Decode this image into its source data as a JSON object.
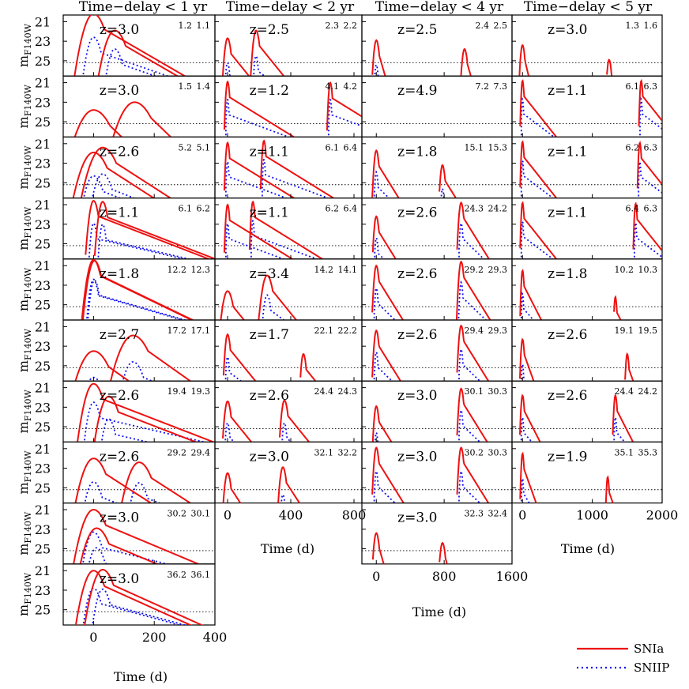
{
  "chart_data": {
    "type": "line",
    "column_titles": [
      "Time−delay < 1 yr",
      "Time−delay < 2 yr",
      "Time−delay < 4 yr",
      "Time−delay < 5 yr"
    ],
    "ylabel": "m",
    "ylabel_sub": "F140W",
    "xlabel": "Time (d)",
    "ylim": [
      26.4,
      20.4
    ],
    "yticks": [
      21,
      23,
      25
    ],
    "detection_limit": 25.2,
    "legend": [
      "SNIa",
      "SNIIP"
    ],
    "legend_position": "bottom-right",
    "series_styles": {
      "SNIa": {
        "color": "#ee1111",
        "dash": "solid"
      },
      "SNIIP": {
        "color": "#1111ee",
        "dash": "dotted"
      }
    },
    "columns": [
      {
        "xlim": [
          -100,
          400
        ],
        "xticks": [
          0,
          200,
          400
        ],
        "panels": [
          {
            "z": "z=3.0",
            "m1": "1.2",
            "m2": "1.1",
            "delay": 70,
            "peaks": [
              20.2,
              21.9
            ],
            "ii_peaks": [
              22.6,
              23.8
            ],
            "rise": 40,
            "decay": 0.018
          },
          {
            "z": "z=3.0",
            "m1": "1.5",
            "m2": "1.4",
            "delay": 135,
            "peaks": [
              23.8,
              23.0
            ],
            "ii_peaks": [
              26.6,
              26.6
            ],
            "rise": 60,
            "decay": 0.03
          },
          {
            "z": "z=2.6",
            "m1": "5.2",
            "m2": "5.1",
            "delay": 30,
            "peaks": [
              21.9,
              21.4
            ],
            "ii_peaks": [
              24.3,
              24.1
            ],
            "rise": 50,
            "decay": 0.02
          },
          {
            "z": "z=1.1",
            "m1": "6.1",
            "m2": "6.2",
            "delay": 30,
            "peaks": [
              20.6,
              20.7
            ],
            "ii_peaks": [
              22.9,
              23.0
            ],
            "rise": 18,
            "decay": 0.012
          },
          {
            "z": "z=1.8",
            "m1": "12.2",
            "m2": "12.3",
            "delay": 3,
            "peaks": [
              20.4,
              20.5
            ],
            "ii_peaks": [
              22.4,
              22.5
            ],
            "rise": 25,
            "decay": 0.015
          },
          {
            "z": "z=2.7",
            "m1": "17.2",
            "m2": "17.1",
            "delay": 130,
            "peaks": [
              23.5,
              21.9
            ],
            "ii_peaks": [
              26.2,
              24.6
            ],
            "rise": 55,
            "decay": 0.022
          },
          {
            "z": "z=2.6",
            "m1": "19.4",
            "m2": "19.3",
            "delay": 50,
            "peaks": [
              20.6,
              21.9
            ],
            "ii_peaks": [
              22.5,
              24.2
            ],
            "rise": 35,
            "decay": 0.012
          },
          {
            "z": "z=2.6",
            "m1": "29.2",
            "m2": "29.4",
            "delay": 150,
            "peaks": [
              22.0,
              22.4
            ],
            "ii_peaks": [
              24.4,
              24.5
            ],
            "rise": 45,
            "decay": 0.02
          },
          {
            "z": "z=3.0",
            "m1": "30.2",
            "m2": "30.1",
            "delay": 10,
            "peaks": [
              21.0,
              22.9
            ],
            "ii_peaks": [
              23.3,
              24.9
            ],
            "rise": 45,
            "decay": 0.013
          },
          {
            "z": "z=3.0",
            "m1": "36.2",
            "m2": "36.1",
            "delay": 30,
            "peaks": [
              21.0,
              20.9
            ],
            "ii_peaks": [
              22.8,
              22.9
            ],
            "rise": 40,
            "decay": 0.014
          }
        ]
      },
      {
        "xlim": [
          -80,
          850
        ],
        "xticks": [
          0,
          400,
          800
        ],
        "panels": [
          {
            "z": "z=2.5",
            "m1": "2.3",
            "m2": "2.2",
            "delay": 180,
            "peaks": [
              22.7,
              21.9
            ],
            "ii_peaks": [
              25.2,
              24.5
            ],
            "rise": 25,
            "decay": 0.02
          },
          {
            "z": "z=1.2",
            "m1": "4.1",
            "m2": "4.2",
            "delay": 650,
            "peaks": [
              20.9,
              21.0
            ],
            "ii_peaks": [
              22.7,
              22.7
            ],
            "rise": 15,
            "decay": 0.01
          },
          {
            "z": "z=1.1",
            "m1": "6.1",
            "m2": "6.4",
            "delay": 230,
            "peaks": [
              20.9,
              20.7
            ],
            "ii_peaks": [
              22.8,
              22.6
            ],
            "rise": 15,
            "decay": 0.01
          },
          {
            "z": "z=1.1",
            "m1": "6.2",
            "m2": "6.4",
            "delay": 160,
            "peaks": [
              21.0,
              20.7
            ],
            "ii_peaks": [
              22.9,
              22.6
            ],
            "rise": 15,
            "decay": 0.01
          },
          {
            "z": "z=3.4",
            "m1": "14.2",
            "m2": "14.1",
            "delay": 250,
            "peaks": [
              23.6,
              22.0
            ],
            "ii_peaks": [
              26.6,
              24.0
            ],
            "rise": 40,
            "decay": 0.02
          },
          {
            "z": "z=1.7",
            "m1": "22.1",
            "m2": "22.2",
            "delay": 480,
            "peaks": [
              21.8,
              23.8
            ],
            "ii_peaks": [
              24.1,
              26.6
            ],
            "rise": 20,
            "decay": 0.02
          },
          {
            "z": "z=2.6",
            "m1": "24.4",
            "m2": "24.3",
            "delay": 360,
            "peaks": [
              22.4,
              22.3
            ],
            "ii_peaks": [
              24.6,
              24.6
            ],
            "rise": 25,
            "decay": 0.02
          },
          {
            "z": "z=3.0",
            "m1": "32.1",
            "m2": "32.2",
            "delay": 350,
            "peaks": [
              23.5,
              22.9
            ],
            "ii_peaks": [
              26.6,
              25.7
            ],
            "rise": 25,
            "decay": 0.025
          }
        ]
      },
      {
        "xlim": [
          -170,
          1600
        ],
        "xticks": [
          0,
          800,
          1600
        ],
        "panels": [
          {
            "z": "z=2.5",
            "m1": "2.4",
            "m2": "2.5",
            "delay": 1040,
            "peaks": [
              22.9,
              23.8
            ],
            "ii_peaks": [
              25.4,
              26.6
            ],
            "rise": 40,
            "decay": 0.03
          },
          {
            "z": "z=4.9",
            "m1": "7.2",
            "m2": "7.3",
            "delay": 1000,
            "peaks": [
              26.8,
              26.8
            ],
            "ii_peaks": [
              26.8,
              26.8
            ],
            "rise": 40,
            "decay": 0.03
          },
          {
            "z": "z=1.8",
            "m1": "15.1",
            "m2": "15.3",
            "delay": 780,
            "peaks": [
              21.7,
              23.2
            ],
            "ii_peaks": [
              23.9,
              25.6
            ],
            "rise": 35,
            "decay": 0.014
          },
          {
            "z": "z=2.6",
            "m1": "24.3",
            "m2": "24.2",
            "delay": 1000,
            "peaks": [
              22.2,
              20.8
            ],
            "ii_peaks": [
              24.4,
              22.9
            ],
            "rise": 35,
            "decay": 0.014
          },
          {
            "z": "z=2.6",
            "m1": "29.2",
            "m2": "29.3",
            "delay": 1000,
            "peaks": [
              21.0,
              20.6
            ],
            "ii_peaks": [
              23.3,
              22.7
            ],
            "rise": 35,
            "decay": 0.014
          },
          {
            "z": "z=2.6",
            "m1": "29.4",
            "m2": "29.3",
            "delay": 1000,
            "peaks": [
              21.4,
              20.9
            ],
            "ii_peaks": [
              23.6,
              23.3
            ],
            "rise": 35,
            "decay": 0.014
          },
          {
            "z": "z=3.0",
            "m1": "30.1",
            "m2": "30.3",
            "delay": 1000,
            "peaks": [
              22.9,
              21.1
            ],
            "ii_peaks": [
              25.6,
              23.3
            ],
            "rise": 35,
            "decay": 0.014
          },
          {
            "z": "z=3.0",
            "m1": "30.2",
            "m2": "30.3",
            "delay": 1000,
            "peaks": [
              20.9,
              20.9
            ],
            "ii_peaks": [
              23.3,
              23.3
            ],
            "rise": 35,
            "decay": 0.014
          },
          {
            "z": "z=3.0",
            "m1": "32.3",
            "m2": "32.4",
            "delay": 780,
            "peaks": [
              23.4,
              24.4
            ],
            "ii_peaks": [
              26.8,
              26.8
            ],
            "rise": 40,
            "decay": 0.03
          }
        ]
      },
      {
        "xlim": [
          -150,
          2000
        ],
        "xticks": [
          0,
          1000,
          2000
        ],
        "panels": [
          {
            "z": "z=3.0",
            "m1": "1.3",
            "m2": "1.6",
            "delay": 1240,
            "peaks": [
              23.4,
              24.9
            ],
            "ii_peaks": [
              26.8,
              26.8
            ],
            "rise": 40,
            "decay": 0.03
          },
          {
            "z": "z=1.1",
            "m1": "6.1",
            "m2": "6.3",
            "delay": 1700,
            "peaks": [
              20.8,
              20.8
            ],
            "ii_peaks": [
              22.6,
              22.6
            ],
            "rise": 25,
            "decay": 0.009
          },
          {
            "z": "z=1.1",
            "m1": "6.2",
            "m2": "6.3",
            "delay": 1680,
            "peaks": [
              20.8,
              20.9
            ],
            "ii_peaks": [
              22.7,
              22.8
            ],
            "rise": 25,
            "decay": 0.009
          },
          {
            "z": "z=1.1",
            "m1": "6.4",
            "m2": "6.3",
            "delay": 1620,
            "peaks": [
              20.8,
              20.9
            ],
            "ii_peaks": [
              22.7,
              22.8
            ],
            "rise": 25,
            "decay": 0.009
          },
          {
            "z": "z=1.8",
            "m1": "10.2",
            "m2": "10.3",
            "delay": 1330,
            "peaks": [
              21.5,
              24.2
            ],
            "ii_peaks": [
              23.8,
              26.8
            ],
            "rise": 25,
            "decay": 0.014
          },
          {
            "z": "z=2.6",
            "m1": "19.1",
            "m2": "19.5",
            "delay": 1500,
            "peaks": [
              22.3,
              23.8
            ],
            "ii_peaks": [
              24.8,
              26.8
            ],
            "rise": 30,
            "decay": 0.02
          },
          {
            "z": "z=2.6",
            "m1": "24.4",
            "m2": "24.2",
            "delay": 1330,
            "peaks": [
              21.8,
              21.8
            ],
            "ii_peaks": [
              24.0,
              24.0
            ],
            "rise": 30,
            "decay": 0.014
          },
          {
            "z": "z=1.9",
            "m1": "35.1",
            "m2": "35.3",
            "delay": 1220,
            "peaks": [
              21.5,
              23.9
            ],
            "ii_peaks": [
              24.0,
              26.8
            ],
            "rise": 25,
            "decay": 0.02
          }
        ]
      }
    ]
  }
}
